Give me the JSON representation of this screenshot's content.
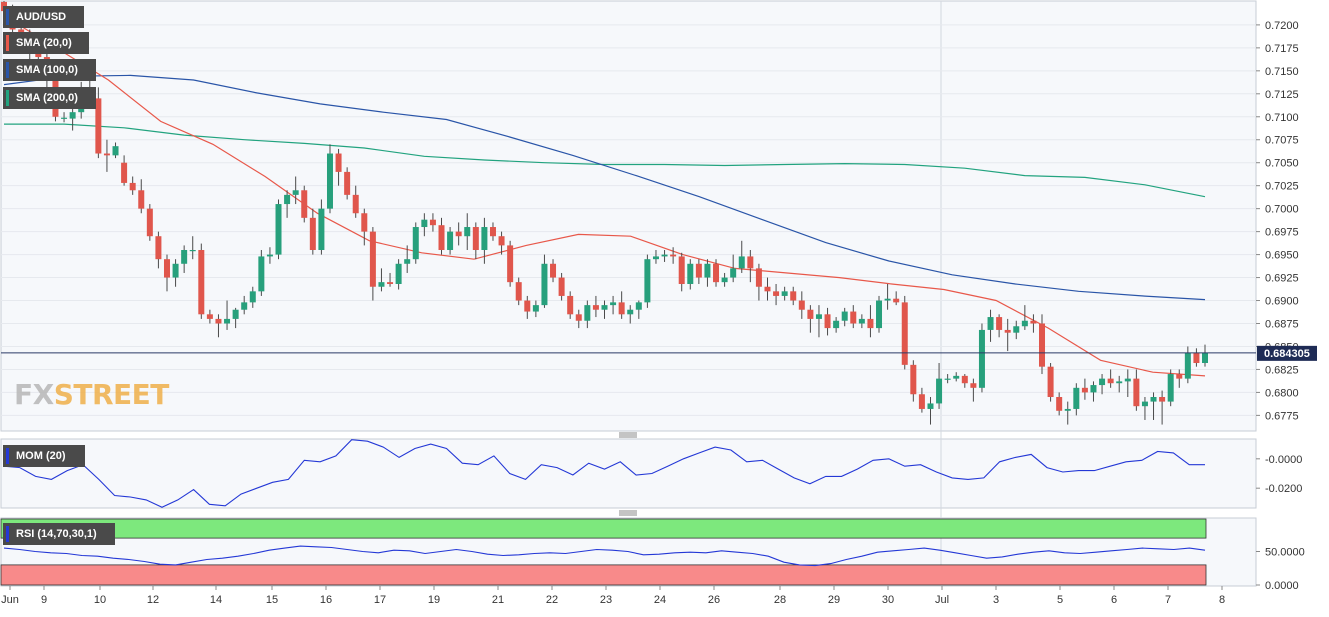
{
  "chart_data": {
    "type": "candlestick",
    "symbol": "AUD/USD",
    "last_price": "0.684305",
    "overlays": [
      {
        "name": "SMA (20,0)",
        "color": "#e8584a"
      },
      {
        "name": "SMA (100,0)",
        "color": "#2a55a8"
      },
      {
        "name": "SMA (200,0)",
        "color": "#22a37f"
      }
    ],
    "price_axis": {
      "ylim": [
        0.6758,
        0.7226
      ],
      "ticks": [
        "0.7200",
        "0.7175",
        "0.7150",
        "0.7125",
        "0.7100",
        "0.7075",
        "0.7050",
        "0.7025",
        "0.7000",
        "0.6975",
        "0.6950",
        "0.6925",
        "0.6900",
        "0.6875",
        "0.6850",
        "0.6825",
        "0.6800",
        "0.6775"
      ]
    },
    "x_labels": [
      "Jun",
      "9",
      "10",
      "12",
      "14",
      "15",
      "16",
      "17",
      "19",
      "21",
      "22",
      "23",
      "24",
      "26",
      "28",
      "29",
      "30",
      "Jul",
      "3",
      "5",
      "6",
      "7",
      "8"
    ],
    "ohlc": [
      {
        "o": 0.7225,
        "h": 0.723,
        "l": 0.7208,
        "c": 0.7215
      },
      {
        "o": 0.7215,
        "h": 0.7222,
        "l": 0.719,
        "c": 0.7195
      },
      {
        "o": 0.7195,
        "h": 0.7205,
        "l": 0.7175,
        "c": 0.718
      },
      {
        "o": 0.718,
        "h": 0.7195,
        "l": 0.716,
        "c": 0.7175
      },
      {
        "o": 0.7175,
        "h": 0.7185,
        "l": 0.715,
        "c": 0.7165
      },
      {
        "o": 0.7165,
        "h": 0.717,
        "l": 0.713,
        "c": 0.714
      },
      {
        "o": 0.714,
        "h": 0.715,
        "l": 0.7095,
        "c": 0.71
      },
      {
        "o": 0.7098,
        "h": 0.7105,
        "l": 0.7094,
        "c": 0.7099
      },
      {
        "o": 0.7098,
        "h": 0.7112,
        "l": 0.7085,
        "c": 0.7105
      },
      {
        "o": 0.7105,
        "h": 0.7138,
        "l": 0.7098,
        "c": 0.713
      },
      {
        "o": 0.713,
        "h": 0.714,
        "l": 0.711,
        "c": 0.712
      },
      {
        "o": 0.712,
        "h": 0.7132,
        "l": 0.7055,
        "c": 0.706
      },
      {
        "o": 0.706,
        "h": 0.7075,
        "l": 0.704,
        "c": 0.7058
      },
      {
        "o": 0.7058,
        "h": 0.7072,
        "l": 0.7055,
        "c": 0.7068
      },
      {
        "o": 0.705,
        "h": 0.7058,
        "l": 0.7025,
        "c": 0.7028
      },
      {
        "o": 0.7028,
        "h": 0.7035,
        "l": 0.7015,
        "c": 0.702
      },
      {
        "o": 0.702,
        "h": 0.7032,
        "l": 0.6995,
        "c": 0.7
      },
      {
        "o": 0.7,
        "h": 0.7005,
        "l": 0.6965,
        "c": 0.697
      },
      {
        "o": 0.697,
        "h": 0.6975,
        "l": 0.6935,
        "c": 0.6945
      },
      {
        "o": 0.6945,
        "h": 0.695,
        "l": 0.691,
        "c": 0.6925
      },
      {
        "o": 0.6925,
        "h": 0.6945,
        "l": 0.6915,
        "c": 0.694
      },
      {
        "o": 0.694,
        "h": 0.696,
        "l": 0.693,
        "c": 0.6955
      },
      {
        "o": 0.6955,
        "h": 0.697,
        "l": 0.6945,
        "c": 0.6955
      },
      {
        "o": 0.6955,
        "h": 0.6962,
        "l": 0.688,
        "c": 0.6885
      },
      {
        "o": 0.6885,
        "h": 0.689,
        "l": 0.6875,
        "c": 0.688
      },
      {
        "o": 0.688,
        "h": 0.6885,
        "l": 0.686,
        "c": 0.6875
      },
      {
        "o": 0.6875,
        "h": 0.69,
        "l": 0.6868,
        "c": 0.688
      },
      {
        "o": 0.688,
        "h": 0.6892,
        "l": 0.687,
        "c": 0.689
      },
      {
        "o": 0.689,
        "h": 0.6905,
        "l": 0.6885,
        "c": 0.6898
      },
      {
        "o": 0.6898,
        "h": 0.6915,
        "l": 0.6892,
        "c": 0.691
      },
      {
        "o": 0.691,
        "h": 0.6955,
        "l": 0.6905,
        "c": 0.6948
      },
      {
        "o": 0.6948,
        "h": 0.6958,
        "l": 0.694,
        "c": 0.695
      },
      {
        "o": 0.695,
        "h": 0.701,
        "l": 0.6945,
        "c": 0.7005
      },
      {
        "o": 0.7005,
        "h": 0.702,
        "l": 0.699,
        "c": 0.7015
      },
      {
        "o": 0.7015,
        "h": 0.7035,
        "l": 0.7005,
        "c": 0.702
      },
      {
        "o": 0.702,
        "h": 0.7025,
        "l": 0.6985,
        "c": 0.699
      },
      {
        "o": 0.699,
        "h": 0.7,
        "l": 0.695,
        "c": 0.6955
      },
      {
        "o": 0.6955,
        "h": 0.701,
        "l": 0.695,
        "c": 0.7
      },
      {
        "o": 0.7,
        "h": 0.707,
        "l": 0.6995,
        "c": 0.706
      },
      {
        "o": 0.706,
        "h": 0.7065,
        "l": 0.7025,
        "c": 0.704
      },
      {
        "o": 0.704,
        "h": 0.7045,
        "l": 0.701,
        "c": 0.7015
      },
      {
        "o": 0.7015,
        "h": 0.7025,
        "l": 0.699,
        "c": 0.6995
      },
      {
        "o": 0.6995,
        "h": 0.7,
        "l": 0.696,
        "c": 0.6975
      },
      {
        "o": 0.6975,
        "h": 0.698,
        "l": 0.69,
        "c": 0.6915
      },
      {
        "o": 0.6915,
        "h": 0.6935,
        "l": 0.691,
        "c": 0.692
      },
      {
        "o": 0.692,
        "h": 0.693,
        "l": 0.6915,
        "c": 0.6918
      },
      {
        "o": 0.6918,
        "h": 0.6945,
        "l": 0.6912,
        "c": 0.694
      },
      {
        "o": 0.694,
        "h": 0.696,
        "l": 0.693,
        "c": 0.6945
      },
      {
        "o": 0.6945,
        "h": 0.6985,
        "l": 0.694,
        "c": 0.698
      },
      {
        "o": 0.698,
        "h": 0.6995,
        "l": 0.697,
        "c": 0.6988
      },
      {
        "o": 0.6988,
        "h": 0.6995,
        "l": 0.6975,
        "c": 0.6982
      },
      {
        "o": 0.6982,
        "h": 0.699,
        "l": 0.695,
        "c": 0.6955
      },
      {
        "o": 0.6955,
        "h": 0.698,
        "l": 0.695,
        "c": 0.6975
      },
      {
        "o": 0.6975,
        "h": 0.6985,
        "l": 0.696,
        "c": 0.697
      },
      {
        "o": 0.697,
        "h": 0.6995,
        "l": 0.6955,
        "c": 0.698
      },
      {
        "o": 0.698,
        "h": 0.6985,
        "l": 0.6945,
        "c": 0.6955
      },
      {
        "o": 0.6955,
        "h": 0.699,
        "l": 0.694,
        "c": 0.698
      },
      {
        "o": 0.698,
        "h": 0.6985,
        "l": 0.6965,
        "c": 0.697
      },
      {
        "o": 0.697,
        "h": 0.6975,
        "l": 0.695,
        "c": 0.696
      },
      {
        "o": 0.696,
        "h": 0.6965,
        "l": 0.6915,
        "c": 0.692
      },
      {
        "o": 0.692,
        "h": 0.6925,
        "l": 0.6895,
        "c": 0.69
      },
      {
        "o": 0.69,
        "h": 0.6905,
        "l": 0.688,
        "c": 0.6888
      },
      {
        "o": 0.6888,
        "h": 0.69,
        "l": 0.6882,
        "c": 0.6895
      },
      {
        "o": 0.6895,
        "h": 0.695,
        "l": 0.6892,
        "c": 0.694
      },
      {
        "o": 0.694,
        "h": 0.6945,
        "l": 0.692,
        "c": 0.6925
      },
      {
        "o": 0.6925,
        "h": 0.693,
        "l": 0.69,
        "c": 0.6905
      },
      {
        "o": 0.6905,
        "h": 0.691,
        "l": 0.688,
        "c": 0.6885
      },
      {
        "o": 0.6885,
        "h": 0.689,
        "l": 0.687,
        "c": 0.6878
      },
      {
        "o": 0.6878,
        "h": 0.69,
        "l": 0.687,
        "c": 0.6895
      },
      {
        "o": 0.6895,
        "h": 0.6905,
        "l": 0.6882,
        "c": 0.689
      },
      {
        "o": 0.689,
        "h": 0.69,
        "l": 0.688,
        "c": 0.6895
      },
      {
        "o": 0.6895,
        "h": 0.6905,
        "l": 0.6885,
        "c": 0.6898
      },
      {
        "o": 0.6898,
        "h": 0.691,
        "l": 0.688,
        "c": 0.6885
      },
      {
        "o": 0.6885,
        "h": 0.6895,
        "l": 0.6875,
        "c": 0.689
      },
      {
        "o": 0.689,
        "h": 0.69,
        "l": 0.688,
        "c": 0.6898
      },
      {
        "o": 0.6898,
        "h": 0.695,
        "l": 0.6892,
        "c": 0.6945
      },
      {
        "o": 0.6945,
        "h": 0.6955,
        "l": 0.694,
        "c": 0.6948
      },
      {
        "o": 0.6948,
        "h": 0.6955,
        "l": 0.6942,
        "c": 0.695
      },
      {
        "o": 0.695,
        "h": 0.6958,
        "l": 0.694,
        "c": 0.6948
      },
      {
        "o": 0.6948,
        "h": 0.6952,
        "l": 0.691,
        "c": 0.6918
      },
      {
        "o": 0.6918,
        "h": 0.6945,
        "l": 0.6912,
        "c": 0.694
      },
      {
        "o": 0.694,
        "h": 0.6945,
        "l": 0.6918,
        "c": 0.6925
      },
      {
        "o": 0.6925,
        "h": 0.6945,
        "l": 0.6915,
        "c": 0.694
      },
      {
        "o": 0.694,
        "h": 0.6945,
        "l": 0.6915,
        "c": 0.692
      },
      {
        "o": 0.692,
        "h": 0.693,
        "l": 0.6915,
        "c": 0.6925
      },
      {
        "o": 0.6925,
        "h": 0.695,
        "l": 0.692,
        "c": 0.6935
      },
      {
        "o": 0.6935,
        "h": 0.6965,
        "l": 0.693,
        "c": 0.6948
      },
      {
        "o": 0.6948,
        "h": 0.6955,
        "l": 0.692,
        "c": 0.6935
      },
      {
        "o": 0.6935,
        "h": 0.694,
        "l": 0.69,
        "c": 0.6915
      },
      {
        "o": 0.6915,
        "h": 0.6925,
        "l": 0.69,
        "c": 0.691
      },
      {
        "o": 0.691,
        "h": 0.6918,
        "l": 0.6895,
        "c": 0.6905
      },
      {
        "o": 0.6905,
        "h": 0.6915,
        "l": 0.69,
        "c": 0.691
      },
      {
        "o": 0.691,
        "h": 0.6915,
        "l": 0.6895,
        "c": 0.69
      },
      {
        "o": 0.69,
        "h": 0.691,
        "l": 0.688,
        "c": 0.689
      },
      {
        "o": 0.689,
        "h": 0.6895,
        "l": 0.6865,
        "c": 0.688
      },
      {
        "o": 0.688,
        "h": 0.6895,
        "l": 0.686,
        "c": 0.6885
      },
      {
        "o": 0.6885,
        "h": 0.6892,
        "l": 0.6862,
        "c": 0.687
      },
      {
        "o": 0.687,
        "h": 0.6882,
        "l": 0.6865,
        "c": 0.6878
      },
      {
        "o": 0.6878,
        "h": 0.6892,
        "l": 0.6872,
        "c": 0.6888
      },
      {
        "o": 0.6888,
        "h": 0.6895,
        "l": 0.687,
        "c": 0.6875
      },
      {
        "o": 0.6875,
        "h": 0.6885,
        "l": 0.687,
        "c": 0.688
      },
      {
        "o": 0.688,
        "h": 0.6895,
        "l": 0.686,
        "c": 0.687
      },
      {
        "o": 0.687,
        "h": 0.6905,
        "l": 0.6865,
        "c": 0.69
      },
      {
        "o": 0.69,
        "h": 0.6918,
        "l": 0.689,
        "c": 0.6902
      },
      {
        "o": 0.6902,
        "h": 0.691,
        "l": 0.6895,
        "c": 0.6898
      },
      {
        "o": 0.6898,
        "h": 0.6905,
        "l": 0.6825,
        "c": 0.683
      },
      {
        "o": 0.683,
        "h": 0.6835,
        "l": 0.679,
        "c": 0.6798
      },
      {
        "o": 0.6798,
        "h": 0.6805,
        "l": 0.6778,
        "c": 0.6782
      },
      {
        "o": 0.6782,
        "h": 0.6795,
        "l": 0.6765,
        "c": 0.6788
      },
      {
        "o": 0.6788,
        "h": 0.6832,
        "l": 0.6782,
        "c": 0.6815
      },
      {
        "o": 0.6815,
        "h": 0.682,
        "l": 0.681,
        "c": 0.6815
      },
      {
        "o": 0.6815,
        "h": 0.6822,
        "l": 0.6812,
        "c": 0.6818
      },
      {
        "o": 0.6818,
        "h": 0.682,
        "l": 0.6805,
        "c": 0.681
      },
      {
        "o": 0.681,
        "h": 0.6815,
        "l": 0.679,
        "c": 0.6805
      },
      {
        "o": 0.6805,
        "h": 0.6875,
        "l": 0.68,
        "c": 0.6868
      },
      {
        "o": 0.6868,
        "h": 0.689,
        "l": 0.6855,
        "c": 0.6882
      },
      {
        "o": 0.6882,
        "h": 0.6885,
        "l": 0.686,
        "c": 0.6868
      },
      {
        "o": 0.6868,
        "h": 0.688,
        "l": 0.6845,
        "c": 0.6865
      },
      {
        "o": 0.6865,
        "h": 0.6878,
        "l": 0.6858,
        "c": 0.6872
      },
      {
        "o": 0.6872,
        "h": 0.6895,
        "l": 0.6868,
        "c": 0.6878
      },
      {
        "o": 0.6878,
        "h": 0.6885,
        "l": 0.6865,
        "c": 0.6875
      },
      {
        "o": 0.6875,
        "h": 0.6885,
        "l": 0.682,
        "c": 0.6828
      },
      {
        "o": 0.6828,
        "h": 0.6832,
        "l": 0.679,
        "c": 0.6795
      },
      {
        "o": 0.6795,
        "h": 0.68,
        "l": 0.6775,
        "c": 0.678
      },
      {
        "o": 0.678,
        "h": 0.679,
        "l": 0.6765,
        "c": 0.6782
      },
      {
        "o": 0.6782,
        "h": 0.681,
        "l": 0.6775,
        "c": 0.6805
      },
      {
        "o": 0.6805,
        "h": 0.6815,
        "l": 0.6792,
        "c": 0.68
      },
      {
        "o": 0.68,
        "h": 0.6812,
        "l": 0.679,
        "c": 0.6808
      },
      {
        "o": 0.6808,
        "h": 0.682,
        "l": 0.6798,
        "c": 0.6815
      },
      {
        "o": 0.6815,
        "h": 0.6825,
        "l": 0.6805,
        "c": 0.681
      },
      {
        "o": 0.681,
        "h": 0.6818,
        "l": 0.68,
        "c": 0.6812
      },
      {
        "o": 0.6812,
        "h": 0.6825,
        "l": 0.6795,
        "c": 0.6815
      },
      {
        "o": 0.6815,
        "h": 0.6825,
        "l": 0.678,
        "c": 0.6785
      },
      {
        "o": 0.6785,
        "h": 0.6795,
        "l": 0.677,
        "c": 0.679
      },
      {
        "o": 0.679,
        "h": 0.68,
        "l": 0.677,
        "c": 0.6795
      },
      {
        "o": 0.6795,
        "h": 0.6802,
        "l": 0.6765,
        "c": 0.679
      },
      {
        "o": 0.679,
        "h": 0.6825,
        "l": 0.6785,
        "c": 0.682
      },
      {
        "o": 0.682,
        "h": 0.6825,
        "l": 0.6805,
        "c": 0.6815
      },
      {
        "o": 0.6815,
        "h": 0.685,
        "l": 0.681,
        "c": 0.6843
      },
      {
        "o": 0.6843,
        "h": 0.6848,
        "l": 0.6828,
        "c": 0.6832
      },
      {
        "o": 0.6832,
        "h": 0.6852,
        "l": 0.6828,
        "c": 0.6843
      }
    ],
    "sma20": [
      0.721,
      0.7175,
      0.714,
      0.7095,
      0.707,
      0.7035,
      0.6995,
      0.6965,
      0.6952,
      0.6945,
      0.696,
      0.6972,
      0.697,
      0.695,
      0.6935,
      0.693,
      0.6925,
      0.6918,
      0.6912,
      0.69,
      0.687,
      0.6835,
      0.6822,
      0.6818
    ],
    "sma100": [
      0.7135,
      0.7144,
      0.7145,
      0.714,
      0.7126,
      0.7114,
      0.7105,
      0.7097,
      0.7078,
      0.7058,
      0.7036,
      0.7013,
      0.6988,
      0.6963,
      0.6943,
      0.6928,
      0.6918,
      0.691,
      0.6905,
      0.6901
    ],
    "sma200": [
      0.7092,
      0.7092,
      0.7088,
      0.708,
      0.7075,
      0.7071,
      0.7066,
      0.7057,
      0.7053,
      0.705,
      0.7048,
      0.7048,
      0.7047,
      0.7048,
      0.7049,
      0.7048,
      0.7044,
      0.7036,
      0.7034,
      0.7026,
      0.7013
    ],
    "momentum": {
      "name": "MOM (20)",
      "ticks": [
        "-0.0000",
        "-0.0200"
      ],
      "ylim": [
        -0.0335,
        0.0135
      ],
      "values": [
        -0.005,
        -0.006,
        -0.012,
        -0.014,
        -0.008,
        -0.004,
        -0.014,
        -0.025,
        -0.026,
        -0.028,
        -0.033,
        -0.028,
        -0.021,
        -0.031,
        -0.032,
        -0.024,
        -0.02,
        -0.016,
        -0.014,
        -0.001,
        -0.002,
        0.002,
        0.013,
        0.012,
        0.008,
        0.001,
        0.007,
        0.01,
        0.007,
        -0.003,
        -0.004,
        0.002,
        -0.01,
        -0.014,
        -0.004,
        -0.006,
        -0.011,
        -0.003,
        -0.007,
        -0.002,
        -0.011,
        -0.01,
        -0.005,
        0.0,
        0.004,
        0.008,
        0.006,
        -0.002,
        -0.001,
        -0.007,
        -0.013,
        -0.017,
        -0.012,
        -0.012,
        -0.007,
        -0.001,
        0.0,
        -0.005,
        -0.004,
        -0.009,
        -0.013,
        -0.014,
        -0.013,
        -0.002,
        0.001,
        0.003,
        -0.006,
        -0.009,
        -0.008,
        -0.008,
        -0.005,
        -0.002,
        -0.001,
        0.005,
        0.004,
        -0.004,
        -0.004
      ]
    },
    "rsi": {
      "name": "RSI (14,70,30,1)",
      "ticks": [
        "50.0000",
        "0.0000"
      ],
      "overbought_color": "#7de87d",
      "oversold_color": "#f88a8a",
      "values": [
        55,
        53,
        50,
        48,
        47,
        44,
        43,
        40,
        38,
        35,
        31,
        30,
        34,
        38,
        40,
        43,
        47,
        52,
        55,
        58,
        57,
        56,
        53,
        50,
        48,
        52,
        51,
        47,
        50,
        53,
        50,
        46,
        44,
        45,
        47,
        48,
        47,
        50,
        53,
        52,
        50,
        45,
        46,
        48,
        49,
        48,
        51,
        49,
        47,
        43,
        34,
        30,
        29,
        32,
        38,
        43,
        49,
        51,
        53,
        55,
        52,
        48,
        44,
        40,
        42,
        46,
        49,
        51,
        48,
        47,
        49,
        51,
        53,
        55,
        54,
        53,
        55,
        52
      ]
    }
  }
}
